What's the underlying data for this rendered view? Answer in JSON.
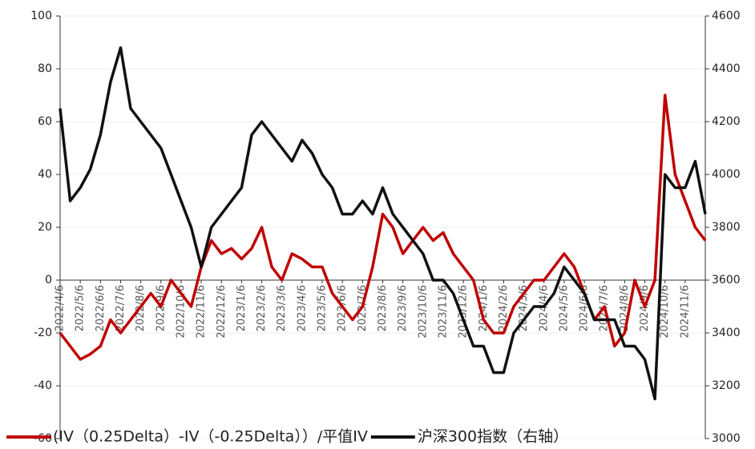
{
  "chart_data": {
    "type": "line",
    "categories": [
      "2022/4/6",
      null,
      "2022/5/6",
      null,
      "2022/6/6",
      null,
      "2022/7/6",
      null,
      "2022/8/6",
      null,
      "2022/9/6",
      null,
      "2022/10/6",
      null,
      "2022/11/6",
      null,
      "2022/12/6",
      null,
      "2023/1/6",
      null,
      "2023/2/6",
      null,
      "2023/3/6",
      null,
      "2023/4/6",
      null,
      "2023/5/6",
      null,
      "2023/6/6",
      null,
      "2023/7/6",
      null,
      "2023/8/6",
      null,
      "2023/9/6",
      null,
      "2023/10/6",
      null,
      "2023/11/6",
      null,
      "2023/12/6",
      null,
      "2024/1/6",
      null,
      "2024/2/6",
      null,
      "2024/3/6",
      null,
      "2024/4/6",
      null,
      "2024/5/6",
      null,
      "2024/6/6",
      null,
      "2024/7/6",
      null,
      "2024/8/6",
      null,
      "2024/9/6",
      null,
      "2024/10/6",
      null,
      "2024/11/6",
      null,
      null
    ],
    "series": [
      {
        "name": "(IV（0.25Delta）-IV（-0.25Delta））/平值IV",
        "color": "#c00000",
        "values": [
          -20,
          -25,
          -30,
          -28,
          -25,
          -15,
          -20,
          -15,
          -10,
          -5,
          -10,
          0,
          -5,
          -10,
          5,
          15,
          10,
          12,
          8,
          12,
          20,
          5,
          0,
          10,
          8,
          5,
          5,
          -5,
          -10,
          -15,
          -10,
          5,
          25,
          20,
          10,
          15,
          20,
          15,
          18,
          10,
          5,
          0,
          -15,
          -20,
          -20,
          -10,
          -5,
          0,
          0,
          5,
          10,
          5,
          -5,
          -15,
          -10,
          -25,
          -20,
          0,
          -10,
          0,
          70,
          40,
          30,
          20,
          15
        ]
      },
      {
        "name": "沪深300指数（右轴）",
        "color": "#111111",
        "axis": "y2",
        "values": [
          4250,
          3900,
          3950,
          4020,
          4150,
          4350,
          4480,
          4250,
          4200,
          4150,
          4100,
          4000,
          3900,
          3800,
          3650,
          3800,
          3850,
          3900,
          3950,
          4150,
          4200,
          4150,
          4100,
          4050,
          4130,
          4080,
          4000,
          3950,
          3850,
          3850,
          3900,
          3850,
          3950,
          3850,
          3800,
          3750,
          3700,
          3600,
          3600,
          3550,
          3450,
          3350,
          3350,
          3250,
          3250,
          3400,
          3450,
          3500,
          3500,
          3550,
          3650,
          3600,
          3550,
          3450,
          3450,
          3450,
          3350,
          3350,
          3300,
          3150,
          4000,
          3950,
          3950,
          4050,
          3850
        ]
      }
    ],
    "ylim": [
      -60,
      100
    ],
    "yticks": [
      -60,
      -40,
      -20,
      0,
      20,
      40,
      60,
      80,
      100
    ],
    "y2lim": [
      3000,
      4600
    ],
    "y2ticks": [
      3000,
      3200,
      3400,
      3600,
      3800,
      4000,
      4200,
      4400,
      4600
    ],
    "grid": true,
    "legend": "bottom"
  }
}
